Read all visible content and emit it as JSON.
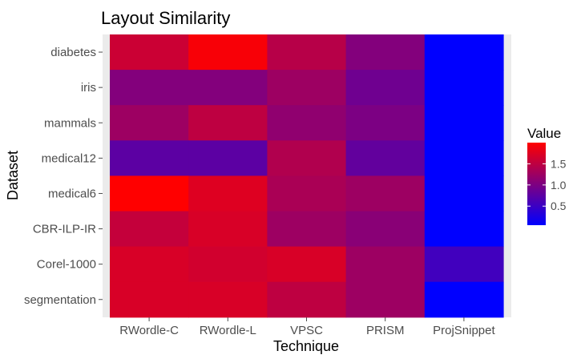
{
  "chart_data": {
    "type": "heatmap",
    "title": "Layout Similarity",
    "xlabel": "Technique",
    "ylabel": "Dataset",
    "x_categories": [
      "RWordle-C",
      "RWordle-L",
      "VPSC",
      "PRISM",
      "ProjSnippet"
    ],
    "y_categories": [
      "diabetes",
      "iris",
      "mammals",
      "medical12",
      "medical6",
      "CBR-ILP-IR",
      "Corel-1000",
      "segmentation"
    ],
    "values": [
      [
        1.6,
        1.95,
        1.45,
        1.05,
        0.05
      ],
      [
        1.05,
        1.05,
        1.25,
        0.9,
        0.05
      ],
      [
        1.25,
        1.5,
        1.15,
        1.0,
        0.05
      ],
      [
        0.75,
        0.75,
        1.4,
        0.8,
        0.05
      ],
      [
        2.0,
        1.75,
        1.35,
        1.25,
        0.05
      ],
      [
        1.55,
        1.7,
        1.25,
        1.1,
        0.05
      ],
      [
        1.7,
        1.65,
        1.7,
        1.25,
        0.55
      ],
      [
        1.7,
        1.7,
        1.5,
        1.25,
        0.05
      ]
    ],
    "colorscale": {
      "low": "#0000ff",
      "high": "#ff0000",
      "min": 0.05,
      "max": 2.0
    },
    "legend": {
      "title": "Value",
      "ticks": [
        {
          "value": 0.5,
          "label": "0.5"
        },
        {
          "value": 1.0,
          "label": "1.0"
        },
        {
          "value": 1.5,
          "label": "1.5"
        }
      ],
      "placement": "right"
    },
    "panel_background": "#ebebeb",
    "grid": true
  }
}
